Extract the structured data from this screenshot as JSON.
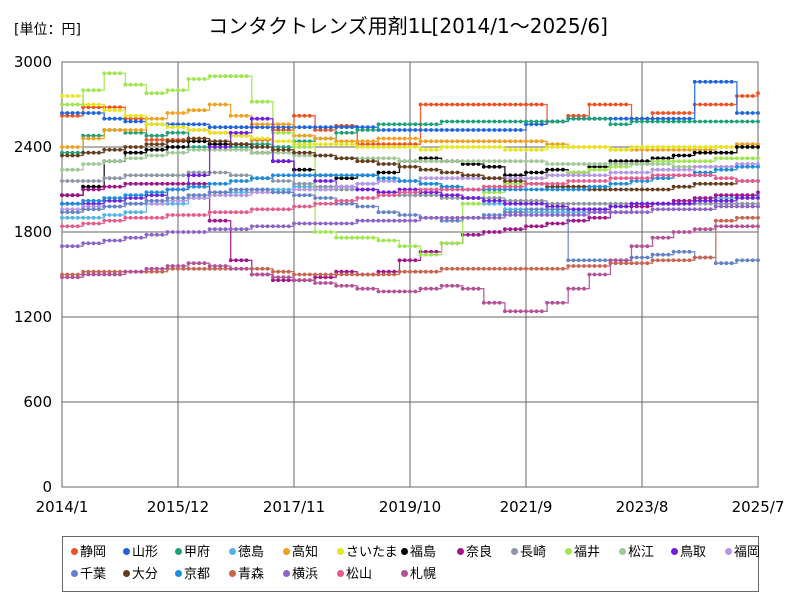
{
  "chart_data": {
    "type": "line",
    "title": "コンタクトレンズ用剤1L[2014/1～2025/6]",
    "unit_label": "[単位：円]",
    "x_ticks": [
      "2014/1",
      "2015/12",
      "2017/11",
      "2019/10",
      "2021/9",
      "2023/8",
      "2025/7"
    ],
    "y_ticks": [
      0,
      600,
      1200,
      1800,
      2400,
      3000
    ],
    "ylim": [
      0,
      3000
    ],
    "grid": true,
    "legend_position": "bottom",
    "series": [
      {
        "name": "静岡",
        "color": "#f0501e",
        "values": [
          2620,
          2680,
          2680,
          2600,
          2450,
          2450,
          2520,
          2500,
          2480,
          2450,
          2520,
          2620,
          2520,
          2550,
          2420,
          2420,
          2420,
          2700,
          2700,
          2700,
          2700,
          2700,
          2700,
          2580,
          2620,
          2700,
          2700,
          2600,
          2640,
          2640,
          2700,
          2700,
          2760,
          2780
        ]
      },
      {
        "name": "山形",
        "color": "#1e64dc",
        "values": [
          2640,
          2640,
          2600,
          2580,
          2560,
          2560,
          2560,
          2540,
          2540,
          2540,
          2540,
          2540,
          2540,
          2540,
          2540,
          2520,
          2520,
          2520,
          2520,
          2520,
          2520,
          2520,
          2560,
          2580,
          2600,
          2600,
          2600,
          2600,
          2600,
          2600,
          2860,
          2860,
          2640,
          2640
        ]
      },
      {
        "name": "甲府",
        "color": "#1ea078",
        "values": [
          2360,
          2480,
          2520,
          2500,
          2480,
          2500,
          2400,
          2420,
          2400,
          2420,
          2400,
          2440,
          2460,
          2500,
          2520,
          2560,
          2560,
          2560,
          2580,
          2580,
          2580,
          2580,
          2580,
          2580,
          2600,
          2600,
          2560,
          2580,
          2580,
          2580,
          2580,
          2580,
          2580,
          2580
        ]
      },
      {
        "name": "徳島",
        "color": "#50b4e6",
        "values": [
          1900,
          1900,
          1920,
          1940,
          2000,
          2000,
          2040,
          2080,
          2080,
          2100,
          2100,
          2120,
          2100,
          2120,
          2140,
          2160,
          2160,
          2140,
          2120,
          2100,
          2000,
          1960,
          1940,
          1940,
          1940,
          1960,
          1980,
          2000,
          2000,
          2000,
          2020,
          2040,
          2060,
          2060
        ]
      },
      {
        "name": "高知",
        "color": "#f0a01e",
        "values": [
          2400,
          2460,
          2520,
          2520,
          2600,
          2640,
          2660,
          2700,
          2620,
          2560,
          2560,
          2480,
          2460,
          2440,
          2440,
          2460,
          2460,
          2440,
          2440,
          2440,
          2440,
          2440,
          2440,
          2420,
          2400,
          2400,
          2380,
          2380,
          2380,
          2380,
          2380,
          2400,
          2420,
          2420
        ]
      },
      {
        "name": "さいたま",
        "color": "#e6e61e",
        "values": [
          2760,
          2700,
          2660,
          2620,
          2560,
          2540,
          2520,
          2500,
          2480,
          2460,
          2440,
          2420,
          2420,
          2420,
          2400,
          2400,
          2400,
          2380,
          2400,
          2400,
          2400,
          2380,
          2380,
          2400,
          2400,
          2400,
          2380,
          2400,
          2400,
          2400,
          2400,
          2400,
          2400,
          2400
        ]
      },
      {
        "name": "福島",
        "color": "#000000",
        "values": [
          2060,
          2120,
          2300,
          2360,
          2380,
          2400,
          2440,
          2420,
          2420,
          2360,
          2300,
          2240,
          2200,
          2180,
          2200,
          2220,
          2300,
          2320,
          2300,
          2280,
          2260,
          2200,
          2220,
          2240,
          2220,
          2260,
          2300,
          2300,
          2320,
          2340,
          2360,
          2360,
          2400,
          2400
        ]
      },
      {
        "name": "奈良",
        "color": "#a0148c",
        "values": [
          2060,
          2100,
          2120,
          2140,
          2140,
          2140,
          2140,
          1880,
          1600,
          1500,
          1460,
          1460,
          1480,
          1520,
          1500,
          1520,
          1600,
          1660,
          1720,
          1780,
          1800,
          1820,
          1840,
          1860,
          1880,
          1900,
          1940,
          1980,
          2000,
          2020,
          2040,
          2060,
          2060,
          2080
        ]
      },
      {
        "name": "長崎",
        "color": "#8c96a5",
        "values": [
          2160,
          2160,
          2180,
          2200,
          2200,
          2200,
          2220,
          2220,
          2200,
          2180,
          2160,
          2140,
          2120,
          2100,
          2100,
          2080,
          2060,
          2060,
          2040,
          2040,
          2040,
          2020,
          2020,
          2000,
          2000,
          2000,
          2000,
          2000,
          2000,
          2000,
          2000,
          2000,
          2000,
          2000
        ]
      },
      {
        "name": "福井",
        "color": "#a0e650",
        "values": [
          2700,
          2800,
          2920,
          2840,
          2780,
          2800,
          2880,
          2900,
          2900,
          2720,
          2500,
          2400,
          1800,
          1760,
          1760,
          1740,
          1700,
          1640,
          1720,
          2000,
          2080,
          2140,
          2180,
          2200,
          2220,
          2240,
          2260,
          2280,
          2300,
          2300,
          2300,
          2320,
          2320,
          2320
        ]
      },
      {
        "name": "松江",
        "color": "#a0c896",
        "values": [
          2240,
          2280,
          2300,
          2320,
          2340,
          2360,
          2380,
          2380,
          2380,
          2360,
          2360,
          2340,
          2340,
          2320,
          2320,
          2320,
          2300,
          2300,
          2300,
          2300,
          2300,
          2300,
          2300,
          2280,
          2280,
          2280,
          2280,
          2280,
          2280,
          2260,
          2260,
          2260,
          2260,
          2260
        ]
      },
      {
        "name": "鳥取",
        "color": "#6e1edc",
        "values": [
          2000,
          2000,
          2020,
          2040,
          2060,
          2100,
          2200,
          2400,
          2500,
          2600,
          2300,
          2200,
          2160,
          2120,
          2100,
          2080,
          2100,
          2080,
          2060,
          2040,
          2020,
          2000,
          2000,
          1980,
          1960,
          1960,
          1980,
          2000,
          2000,
          2000,
          2020,
          2020,
          2040,
          2040
        ]
      },
      {
        "name": "福岡",
        "color": "#b496e6",
        "values": [
          1960,
          1980,
          1980,
          2000,
          2000,
          2020,
          2040,
          2060,
          2060,
          2080,
          2080,
          2100,
          2100,
          2120,
          2140,
          2160,
          2160,
          2180,
          2180,
          2180,
          2180,
          2180,
          2180,
          2200,
          2200,
          2200,
          2220,
          2220,
          2240,
          2240,
          2260,
          2260,
          2280,
          2280
        ]
      },
      {
        "name": "千葉",
        "color": "#6482c8",
        "values": [
          1940,
          1960,
          1980,
          2000,
          2020,
          2040,
          2060,
          2080,
          2100,
          2100,
          2080,
          2060,
          2040,
          2000,
          1980,
          1940,
          1920,
          1900,
          1880,
          1900,
          1920,
          1940,
          1960,
          1960,
          1600,
          1600,
          1600,
          1620,
          1640,
          1660,
          1620,
          1580,
          1600,
          1600
        ]
      },
      {
        "name": "大分",
        "color": "#643c1e",
        "values": [
          2340,
          2360,
          2380,
          2400,
          2420,
          2440,
          2460,
          2440,
          2420,
          2400,
          2380,
          2360,
          2340,
          2320,
          2300,
          2280,
          2260,
          2240,
          2220,
          2200,
          2180,
          2160,
          2140,
          2120,
          2120,
          2100,
          2100,
          2100,
          2100,
          2120,
          2140,
          2140,
          2160,
          2160
        ]
      },
      {
        "name": "京都",
        "color": "#1e8cdc",
        "values": [
          2000,
          2020,
          2040,
          2060,
          2080,
          2100,
          2120,
          2140,
          2160,
          2180,
          2200,
          2200,
          2200,
          2200,
          2200,
          2180,
          2160,
          2140,
          2120,
          2100,
          2100,
          2100,
          2100,
          2100,
          2100,
          2120,
          2140,
          2160,
          2180,
          2200,
          2220,
          2240,
          2260,
          2260
        ]
      },
      {
        "name": "青森",
        "color": "#c86450",
        "values": [
          1500,
          1520,
          1520,
          1520,
          1520,
          1540,
          1540,
          1540,
          1540,
          1540,
          1520,
          1500,
          1500,
          1500,
          1500,
          1500,
          1520,
          1520,
          1540,
          1540,
          1540,
          1540,
          1540,
          1540,
          1560,
          1560,
          1580,
          1580,
          1600,
          1600,
          1620,
          1880,
          1900,
          1900
        ]
      },
      {
        "name": "横浜",
        "color": "#8c64c8",
        "values": [
          1700,
          1720,
          1740,
          1760,
          1780,
          1800,
          1800,
          1820,
          1820,
          1840,
          1840,
          1860,
          1860,
          1860,
          1880,
          1880,
          1880,
          1900,
          1900,
          1900,
          1900,
          1920,
          1920,
          1920,
          1920,
          1940,
          1940,
          1940,
          1960,
          1960,
          1960,
          1980,
          1980,
          1980
        ]
      },
      {
        "name": "松山",
        "color": "#e65a8c",
        "values": [
          1840,
          1860,
          1880,
          1900,
          1900,
          1920,
          1920,
          1940,
          1940,
          1960,
          1960,
          1980,
          2000,
          2020,
          2040,
          2060,
          2080,
          2100,
          2100,
          2100,
          2120,
          2120,
          2140,
          2140,
          2160,
          2160,
          2180,
          2180,
          2200,
          2200,
          2200,
          2180,
          2160,
          2160
        ]
      },
      {
        "name": "札幌",
        "color": "#b45096",
        "values": [
          1480,
          1500,
          1500,
          1520,
          1540,
          1560,
          1580,
          1560,
          1540,
          1500,
          1480,
          1460,
          1440,
          1420,
          1400,
          1380,
          1380,
          1400,
          1420,
          1400,
          1300,
          1240,
          1240,
          1300,
          1400,
          1500,
          1600,
          1700,
          1760,
          1800,
          1820,
          1840,
          1840,
          1840
        ]
      }
    ]
  }
}
